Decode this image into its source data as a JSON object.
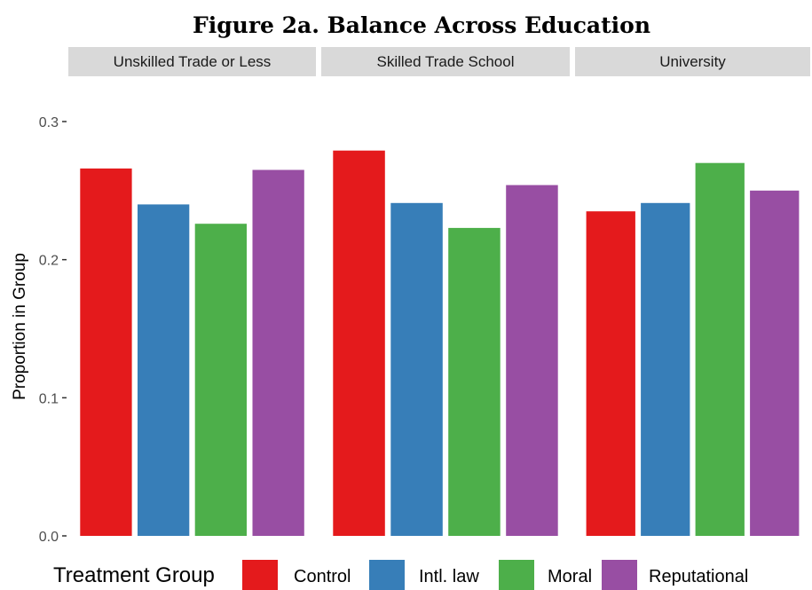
{
  "chart_data": {
    "type": "bar",
    "title": "Figure 2a. Balance Across Education",
    "ylabel": "Proportion in Group",
    "xlabel": "",
    "ylim": [
      0,
      0.3
    ],
    "yticks": [
      0.0,
      0.1,
      0.2,
      0.3
    ],
    "ytick_labels": [
      "0.0",
      "0.1",
      "0.2",
      "0.3"
    ],
    "grid": false,
    "legend_position": "bottom",
    "legend_title": "Treatment Group",
    "facets": [
      "Unskilled Trade or Less",
      "Skilled Trade School",
      "University"
    ],
    "series": [
      {
        "name": "Control",
        "color": "#e41a1c",
        "values": [
          0.266,
          0.279,
          0.235
        ]
      },
      {
        "name": "Intl. law",
        "color": "#377eb8",
        "values": [
          0.24,
          0.241,
          0.241
        ]
      },
      {
        "name": "Moral",
        "color": "#4daf4a",
        "values": [
          0.226,
          0.223,
          0.27
        ]
      },
      {
        "name": "Reputational",
        "color": "#984ea3",
        "values": [
          0.265,
          0.254,
          0.25
        ]
      }
    ],
    "facet_strip_color": "#d9d9d9",
    "axis_color": "#333333"
  }
}
